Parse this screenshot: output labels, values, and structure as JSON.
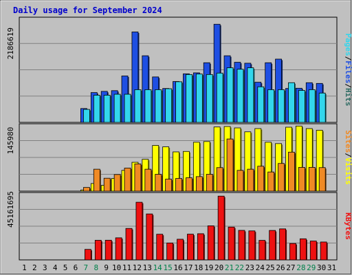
{
  "chart_data": {
    "type": "bar",
    "title": "Daily usage for September 2024",
    "categories": [
      "1",
      "2",
      "3",
      "4",
      "5",
      "6",
      "7",
      "8",
      "9",
      "10",
      "11",
      "12",
      "13",
      "14",
      "15",
      "16",
      "17",
      "18",
      "19",
      "20",
      "21",
      "22",
      "23",
      "24",
      "25",
      "26",
      "27",
      "28",
      "29",
      "30",
      "31"
    ],
    "weekend_days": [
      "7",
      "8",
      "14",
      "15",
      "21",
      "22",
      "28",
      "29"
    ],
    "panels": [
      {
        "name": "top",
        "tick_label": "2186619",
        "tick_value": 2186619,
        "ylim": [
          0,
          4373238
        ],
        "series": [
          {
            "name": "Hits",
            "color": "#2e6b63",
            "values": [
              0,
              0,
              0,
              0,
              0,
              0,
              0,
              0,
              0,
              0,
              0,
              0,
              0,
              0,
              0,
              0,
              0,
              0,
              0,
              0,
              0,
              0,
              0,
              0,
              0,
              0,
              0,
              0,
              0,
              0,
              0
            ]
          },
          {
            "name": "Files",
            "color": "#1e4fe3",
            "values": [
              0,
              0,
              0,
              0,
              0,
              0,
              577000,
              1240000,
              1290000,
              1320000,
              1930000,
              3760000,
              2770000,
              1890000,
              1410000,
              1700000,
              2020000,
              2060000,
              2480000,
              4080000,
              2770000,
              2500000,
              2460000,
              1670000,
              2480000,
              2630000,
              1410000,
              1420000,
              1650000,
              1620000,
              0
            ]
          },
          {
            "name": "Pages",
            "color": "#33d6ec",
            "values": [
              0,
              0,
              0,
              0,
              0,
              0,
              540000,
              1130000,
              1130000,
              1170000,
              1170000,
              1360000,
              1360000,
              1360000,
              1400000,
              1690000,
              1990000,
              2010000,
              1990000,
              2050000,
              2270000,
              2210000,
              2270000,
              1480000,
              1360000,
              1360000,
              1650000,
              1330000,
              1360000,
              1220000,
              0
            ]
          }
        ],
        "legend": [
          "Pages",
          "/",
          "Files",
          "/",
          "Hits"
        ]
      },
      {
        "name": "middle",
        "tick_label": "145980",
        "tick_value": 145980,
        "ylim": [
          0,
          291960
        ],
        "series": [
          {
            "name": "Visits",
            "color": "#ffff00",
            "values": [
              0,
              0,
              0,
              0,
              0,
              0,
              5000,
              33000,
              25000,
              55000,
              90000,
              125000,
              138000,
              198000,
              192000,
              170000,
              172000,
              212000,
              215000,
              278000,
              280000,
              274000,
              257000,
              271000,
              212000,
              206000,
              277000,
              282000,
              271000,
              264000,
              0
            ]
          },
          {
            "name": "Sites",
            "color": "#f08a24",
            "values": [
              0,
              0,
              0,
              0,
              0,
              0,
              16000,
              95000,
              56000,
              72000,
              100000,
              118000,
              95000,
              73000,
              52000,
              55000,
              58000,
              63000,
              73000,
              102000,
              226000,
              90000,
              95000,
              108000,
              83000,
              120000,
              169000,
              103000,
              103000,
              102000,
              0
            ]
          }
        ],
        "legend": [
          "Sites",
          "/",
          "Visits"
        ]
      },
      {
        "name": "bottom",
        "tick_label": "45161695",
        "tick_value": 45161695,
        "ylim": [
          0,
          90323390
        ],
        "series": [
          {
            "name": "KBytes",
            "color": "#ee1111",
            "values": [
              0,
              0,
              0,
              0,
              0,
              0,
              14100000,
              26300000,
              26400000,
              29600000,
              42200000,
              77300000,
              61600000,
              34400000,
              22700000,
              27700000,
              34500000,
              35100000,
              45700000,
              85500000,
              44000000,
              39600000,
              38900000,
              26200000,
              39500000,
              41600000,
              22000000,
              28300000,
              25300000,
              24000000,
              0
            ]
          }
        ],
        "legend": [
          "KBytes"
        ]
      }
    ]
  }
}
